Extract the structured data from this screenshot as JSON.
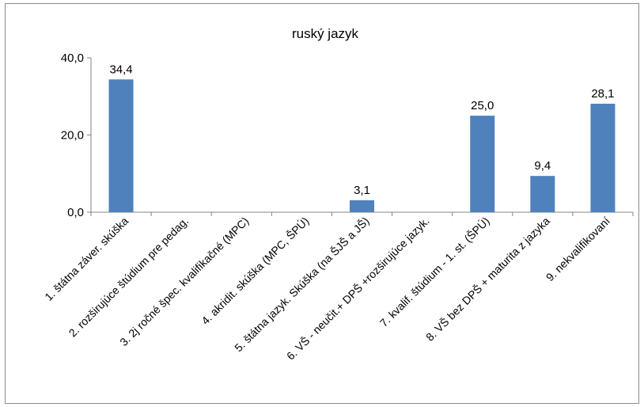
{
  "chart_data": {
    "type": "bar",
    "title": "ruský jazyk",
    "categories": [
      "1. štátna záver. skúška",
      "2. rozširujúce štúdium pre pedag.",
      "3. 2j ročné špec. kvalifikačné (MPC)",
      "4. akridit. skúška (MPC, ŠPÚ)",
      "5. štátna jazyk. Skúška (na ŠJŠ a JŠ)",
      "6. VŠ - neučit.+ DPŠ +rozširujúce jazyk.",
      "7. kvalif. štúdium - 1. st. (ŠPÚ)",
      "8. VŠ bez DPŠ + maturita z jazyka",
      "9. nekvalifikovaní"
    ],
    "values": [
      34.4,
      0,
      0,
      0,
      3.1,
      0,
      25.0,
      9.4,
      28.1
    ],
    "data_labels": [
      "34,4",
      "",
      "",
      "",
      "3,1",
      "",
      "25,0",
      "9,4",
      "28,1"
    ],
    "yticks": [
      "0,0",
      "20,0",
      "40,0"
    ],
    "ylim": [
      0,
      40
    ],
    "bar_color": "#4f81bd",
    "grid": false,
    "legend": "none"
  }
}
